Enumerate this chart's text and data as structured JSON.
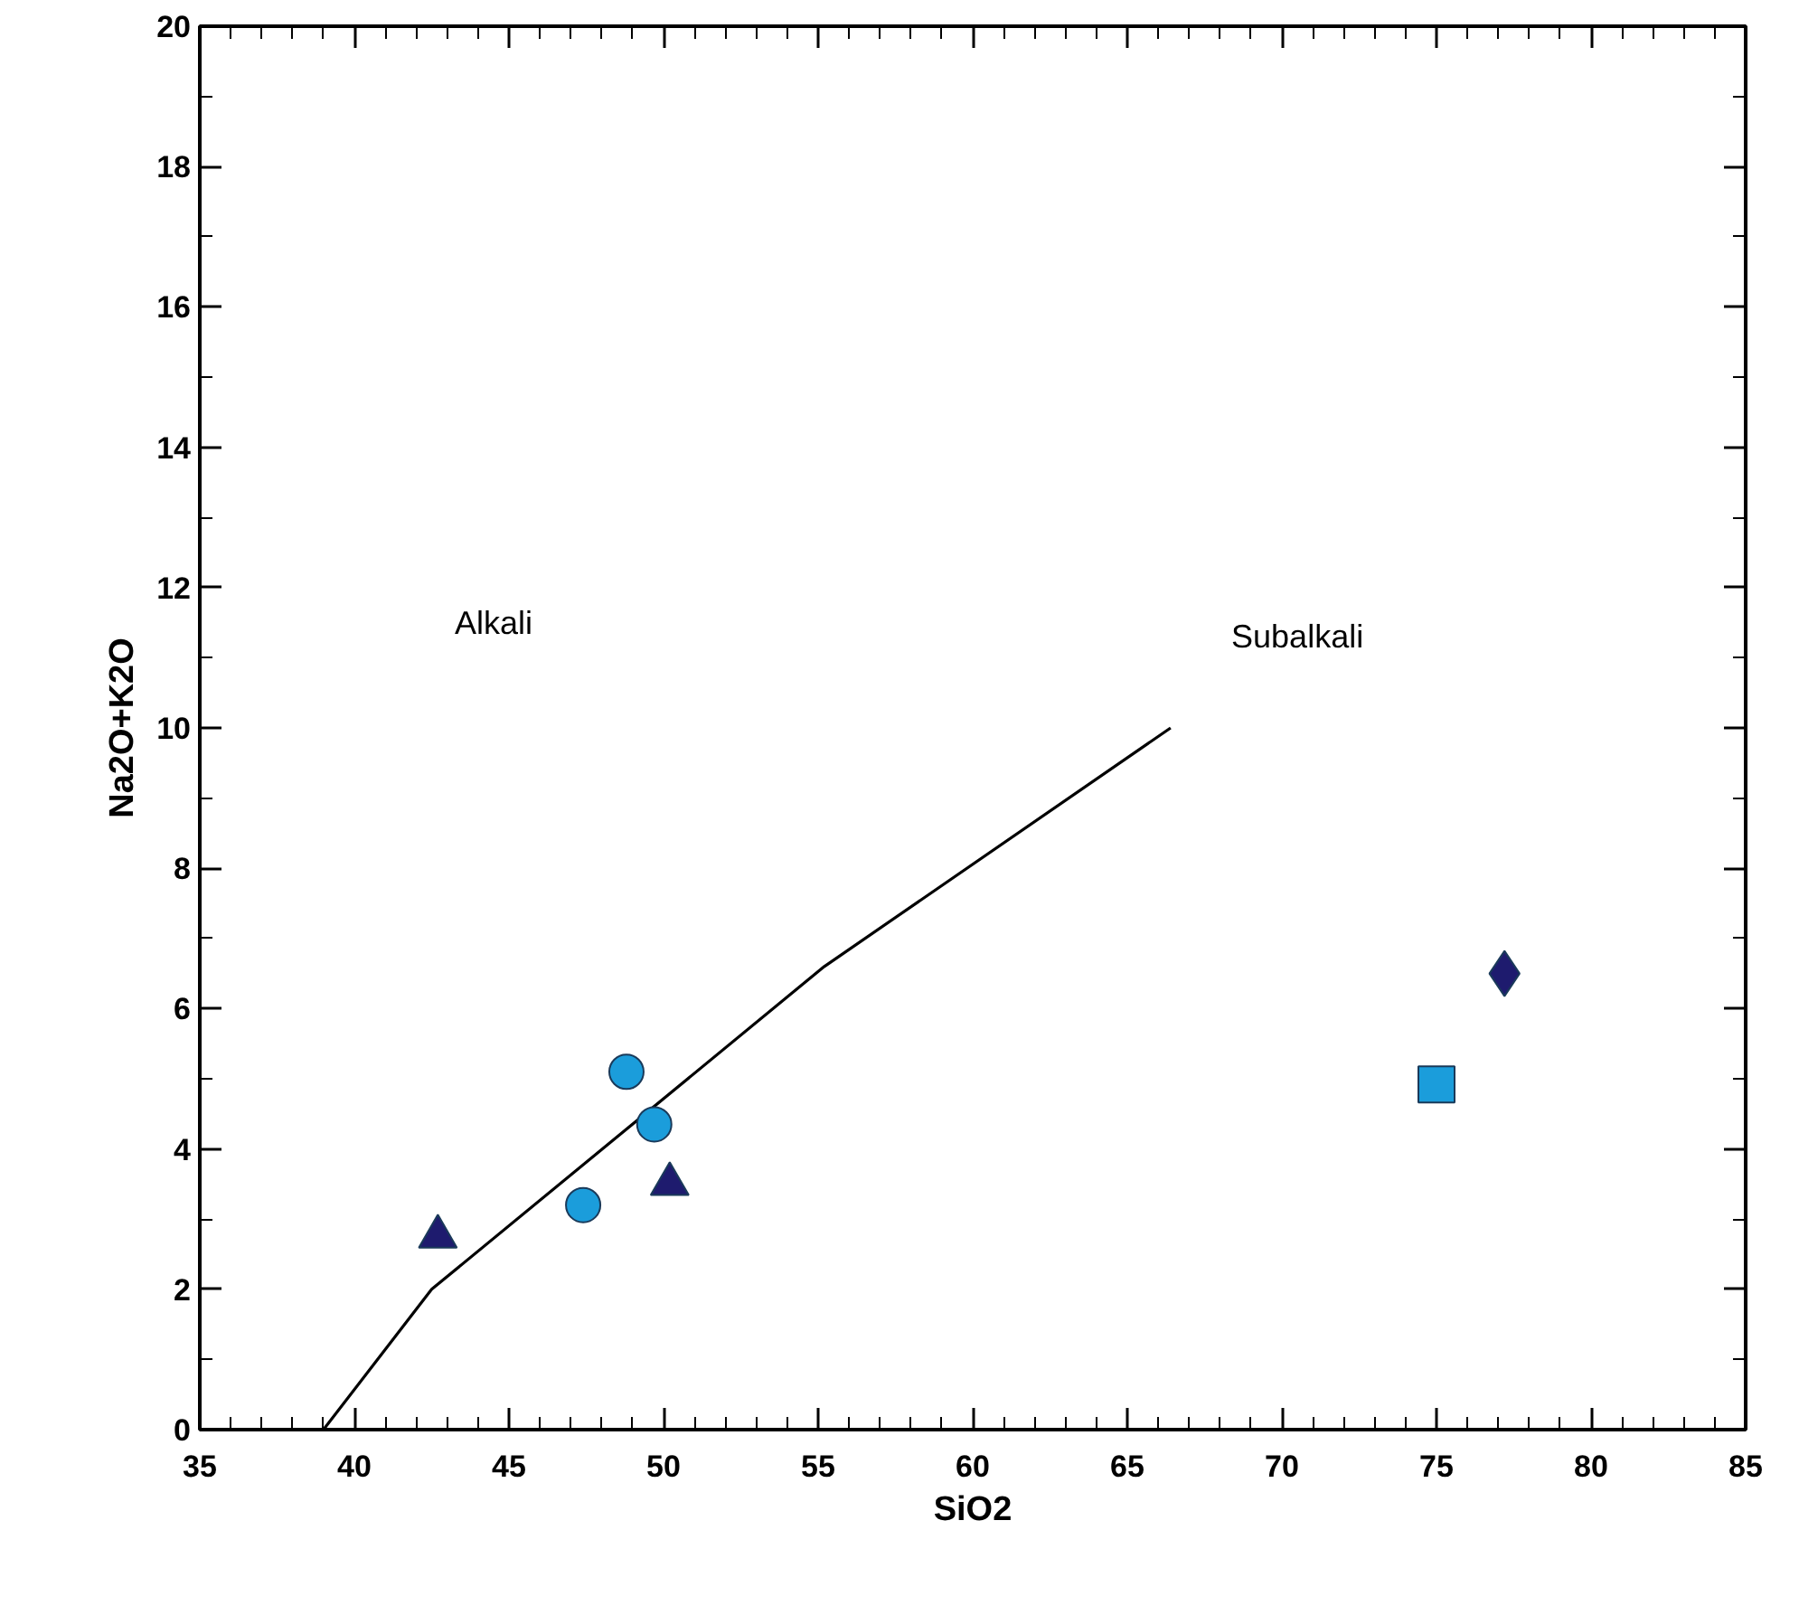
{
  "chart_data": {
    "type": "scatter",
    "xlabel": "SiO2",
    "ylabel": "Na2O+K2O",
    "xlim": [
      35,
      85
    ],
    "ylim": [
      0,
      20
    ],
    "xticks": [
      35,
      {
        "value": 36,
        "label": null
      },
      {
        "value": 37,
        "label": null
      },
      {
        "value": 38,
        "label": null
      },
      {
        "value": 39,
        "label": null
      },
      40,
      {
        "value": 41,
        "label": null
      },
      {
        "value": 42,
        "label": null
      },
      {
        "value": 43,
        "label": null
      },
      {
        "value": 44,
        "label": null
      },
      45,
      {
        "value": 46,
        "label": null
      },
      {
        "value": 47,
        "label": null
      },
      {
        "value": 48,
        "label": null
      },
      {
        "value": 49,
        "label": null
      },
      50,
      {
        "value": 51,
        "label": null
      },
      {
        "value": 52,
        "label": null
      },
      {
        "value": 53,
        "label": null
      },
      {
        "value": 54,
        "label": null
      },
      55,
      {
        "value": 56,
        "label": null
      },
      {
        "value": 57,
        "label": null
      },
      {
        "value": 58,
        "label": null
      },
      {
        "value": 59,
        "label": null
      },
      60,
      {
        "value": 61,
        "label": null
      },
      {
        "value": 62,
        "label": null
      },
      {
        "value": 63,
        "label": null
      },
      {
        "value": 64,
        "label": null
      },
      65,
      {
        "value": 66,
        "label": null
      },
      {
        "value": 67,
        "label": null
      },
      {
        "value": 68,
        "label": null
      },
      {
        "value": 69,
        "label": null
      },
      70,
      {
        "value": 71,
        "label": null
      },
      {
        "value": 72,
        "label": null
      },
      {
        "value": 73,
        "label": null
      },
      {
        "value": 74,
        "label": null
      },
      75,
      {
        "value": 76,
        "label": null
      },
      {
        "value": 77,
        "label": null
      },
      {
        "value": 78,
        "label": null
      },
      {
        "value": 79,
        "label": null
      },
      80,
      {
        "value": 81,
        "label": null
      },
      {
        "value": 82,
        "label": null
      },
      {
        "value": 83,
        "label": null
      },
      {
        "value": 84,
        "label": null
      },
      85
    ],
    "yticks": [
      0,
      {
        "value": 1,
        "label": null
      },
      2,
      {
        "value": 3,
        "label": null
      },
      4,
      {
        "value": 5,
        "label": null
      },
      6,
      {
        "value": 7,
        "label": null
      },
      8,
      {
        "value": 9,
        "label": null
      },
      10,
      {
        "value": 11,
        "label": null
      },
      12,
      {
        "value": 13,
        "label": null
      },
      14,
      {
        "value": 15,
        "label": null
      },
      16,
      {
        "value": 17,
        "label": null
      },
      18,
      {
        "value": 19,
        "label": null
      },
      20
    ],
    "grid": false,
    "series": [
      {
        "type": "line",
        "color": "#000000",
        "marker": "none",
        "line_style": "solid",
        "x": [
          39,
          42.5,
          55.2,
          66.4
        ],
        "values": [
          0,
          2,
          6.6,
          10
        ]
      },
      {
        "color": "#1b9ddb",
        "marker": "circle",
        "x": [
          48.8,
          49.7,
          47.4
        ],
        "values": [
          5.1,
          4.35,
          3.2
        ]
      },
      {
        "color": "#1e1b6e",
        "marker": "triangle",
        "x": [
          42.7,
          50.2
        ],
        "values": [
          2.75,
          3.5
        ]
      },
      {
        "color": "#1b9ddb",
        "marker": "square",
        "x": [
          75
        ],
        "values": [
          4.92
        ]
      },
      {
        "color": "#1e1b6e",
        "marker": "diamond",
        "x": [
          77.2
        ],
        "values": [
          6.5
        ]
      }
    ],
    "annotations": [
      "Alkali",
      "Subalkali"
    ]
  }
}
